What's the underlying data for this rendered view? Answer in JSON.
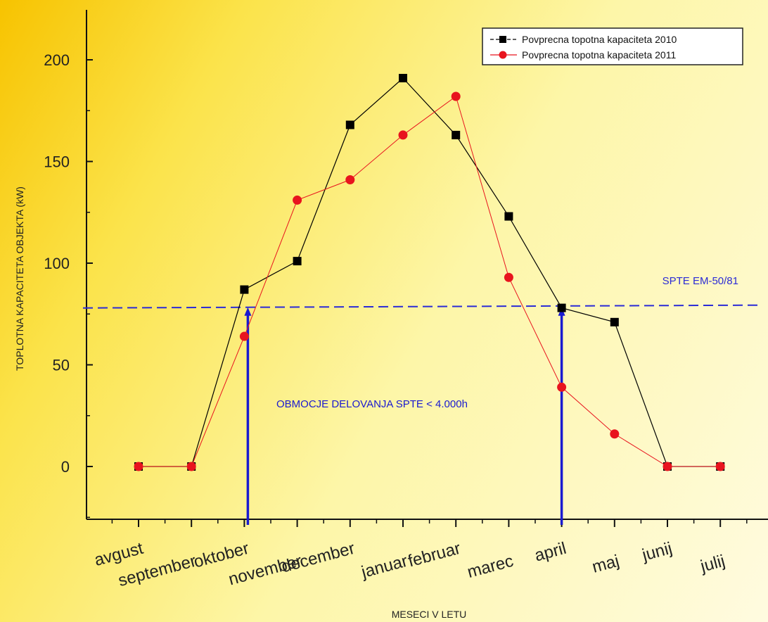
{
  "chart_data": {
    "type": "line",
    "categories": [
      "avgust",
      "september",
      "oktober",
      "november",
      "december",
      "januar",
      "februar",
      "marec",
      "april",
      "maj",
      "junij",
      "julij"
    ],
    "series": [
      {
        "name": "Povprecna topotna kapaciteta 2010",
        "color": "#000000",
        "marker": "square",
        "values": [
          0,
          0,
          87,
          101,
          168,
          191,
          163,
          123,
          78,
          71,
          0,
          0
        ]
      },
      {
        "name": "Povprecna topotna kapaciteta 2011",
        "color": "#e8141e",
        "marker": "circle",
        "values": [
          0,
          0,
          64,
          131,
          141,
          163,
          182,
          93,
          39,
          16,
          0,
          0
        ]
      }
    ],
    "xlabel": "MESECI V LETU",
    "ylabel": "TOPLOTNA KAPACITETA OBJEKTA (kW)",
    "ylim": [
      -25,
      225
    ],
    "yticks": [
      0,
      50,
      100,
      150,
      200
    ],
    "grid": false,
    "legend_position": "top-right",
    "reference_line": {
      "value": 79,
      "label": "SPTE EM-50/81",
      "color": "#2b2bd6",
      "style": "dashed"
    },
    "operating_window": {
      "start": "oktober",
      "end": "april",
      "label": "OBMOCJE DELOVANJA SPTE < 4.000h",
      "color": "#1a1ad0"
    }
  }
}
